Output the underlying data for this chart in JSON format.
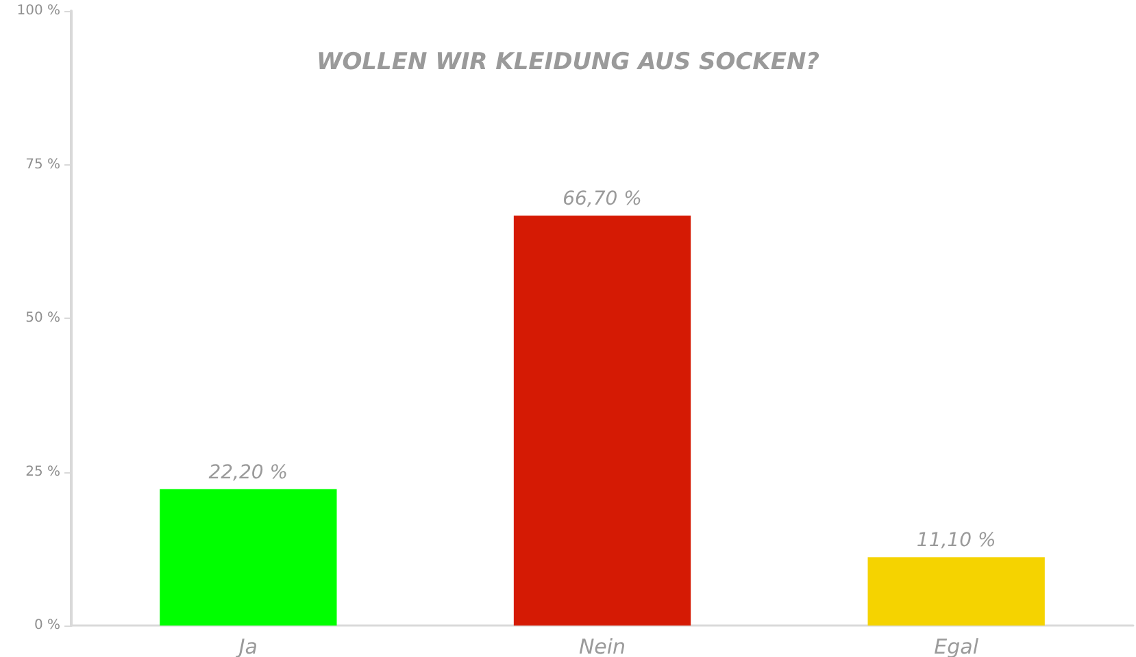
{
  "chart_data": {
    "type": "bar",
    "title": "WOLLEN WIR KLEIDUNG AUS SOCKEN?",
    "categories": [
      "Ja",
      "Nein",
      "Egal"
    ],
    "values": [
      22.2,
      66.7,
      11.1
    ],
    "colors": [
      "#00ff00",
      "#d51a04",
      "#f5d300"
    ],
    "value_labels": [
      "22,20 %",
      "66,70 %",
      "11,10 %"
    ],
    "ylim": [
      0,
      100
    ],
    "yticks": [
      {
        "value": 0,
        "label": "0 %"
      },
      {
        "value": 25,
        "label": "25 %"
      },
      {
        "value": 50,
        "label": "50 %"
      },
      {
        "value": 75,
        "label": "75 %"
      },
      {
        "value": 100,
        "label": "100 %"
      }
    ],
    "grid": false
  }
}
